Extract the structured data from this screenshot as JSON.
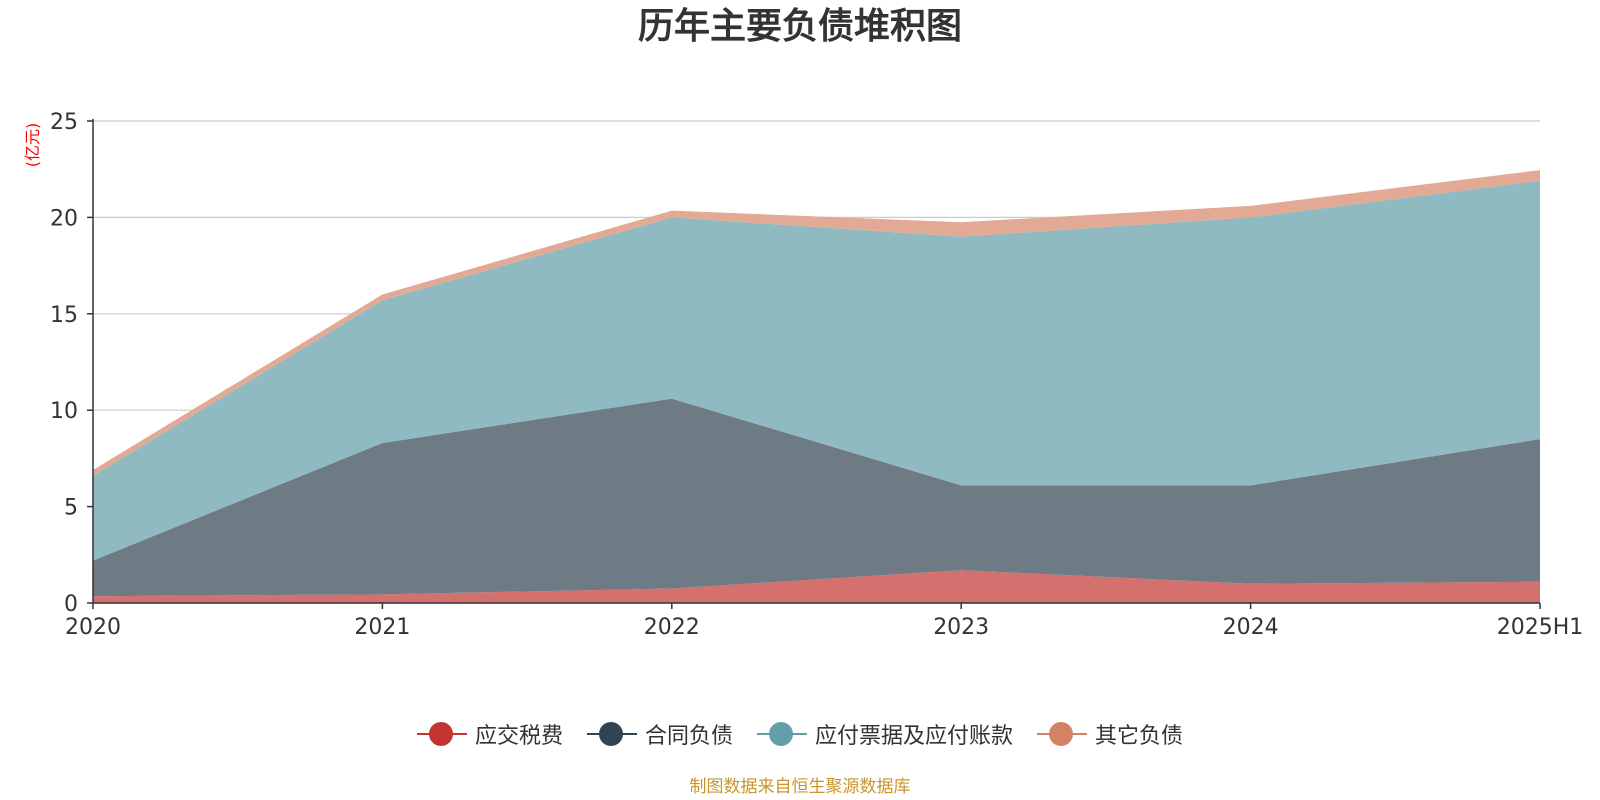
{
  "chart_data": {
    "type": "area",
    "title": "历年主要负债堆积图",
    "ylabel": "(亿元)",
    "xlabel": "",
    "x": [
      "2020",
      "2021",
      "2022",
      "2023",
      "2024",
      "2025H1"
    ],
    "ylim": [
      0,
      25
    ],
    "yticks": [
      "0",
      "5",
      "10",
      "15",
      "20",
      "25"
    ],
    "stacked": true,
    "grid": true,
    "legend_position": "bottom",
    "series": [
      {
        "name": "应交税费",
        "color": "#c23531",
        "area_color": "#d4706e",
        "values": [
          0.35,
          0.45,
          0.75,
          1.7,
          1.0,
          1.1
        ]
      },
      {
        "name": "合同负债",
        "color": "#2f4554",
        "area_color": "#6e7b85",
        "values": [
          1.85,
          7.85,
          9.85,
          4.4,
          5.1,
          7.4
        ]
      },
      {
        "name": "应付票据及应付账款",
        "color": "#61a0a8",
        "area_color": "#90bac1",
        "values": [
          4.4,
          7.4,
          9.4,
          12.9,
          13.9,
          13.4
        ]
      },
      {
        "name": "其它负债",
        "color": "#d48265",
        "area_color": "#e2a995",
        "values": [
          0.3,
          0.3,
          0.35,
          0.75,
          0.6,
          0.55
        ]
      }
    ],
    "source_note": "制图数据来自恒生聚源数据库",
    "source_color": "#c8962a",
    "unit_color": "#ff0000"
  }
}
